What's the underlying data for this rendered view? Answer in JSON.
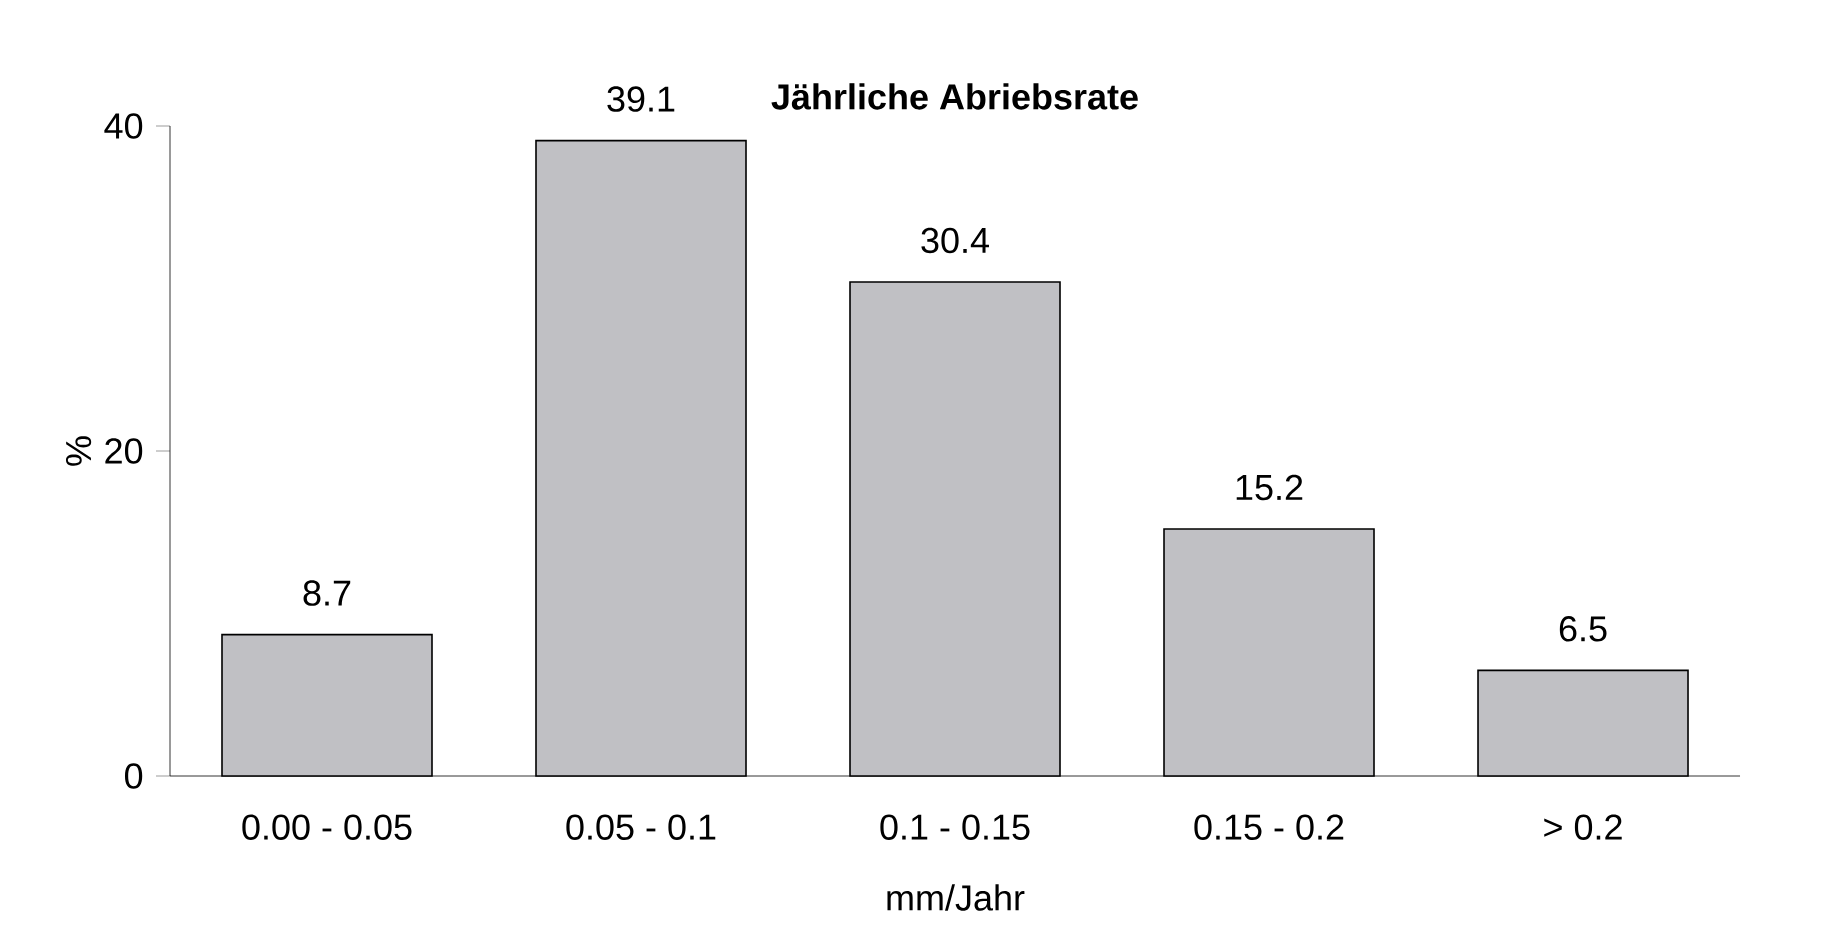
{
  "chart_data": {
    "type": "bar",
    "title": "Jährliche Abriebsrate",
    "xlabel": "mm/Jahr",
    "ylabel": "%",
    "categories": [
      "0.00 - 0.05",
      "0.05 - 0.1",
      "0.1 - 0.15",
      "0.15 - 0.2",
      "> 0.2"
    ],
    "values": [
      8.7,
      39.1,
      30.4,
      15.2,
      6.5
    ],
    "color": "#c0c0c4",
    "ylim": [
      0,
      40
    ],
    "yticks": [
      0,
      20,
      40
    ],
    "data_labels": true
  }
}
